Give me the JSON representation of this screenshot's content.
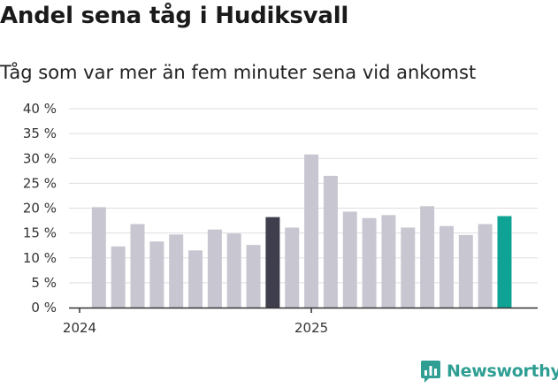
{
  "chart_data": {
    "type": "bar",
    "title": "Andel sena tåg i Hudiksvall",
    "subtitle": "Tåg som var mer än fem minuter sena vid ankomst",
    "ylim": [
      0,
      40
    ],
    "yticks": [
      "0 %",
      "5 %",
      "10 %",
      "15 %",
      "20 %",
      "25 %",
      "30 %",
      "35 %",
      "40 %"
    ],
    "xtick_labels": [
      {
        "label": "2024",
        "index": 0
      },
      {
        "label": "2025",
        "index": 12
      }
    ],
    "values": [
      null,
      20.2,
      12.3,
      16.8,
      13.3,
      14.7,
      11.5,
      15.7,
      14.9,
      12.6,
      18.2,
      16.1,
      30.8,
      26.5,
      19.3,
      18.0,
      18.6,
      16.1,
      20.4,
      16.4,
      14.6,
      16.8,
      18.4
    ],
    "highlights": {
      "10": "#3f3e4c",
      "22": "#0fa396"
    },
    "default_color": "#c8c7d1",
    "grid": true,
    "legend": "none"
  },
  "branding": {
    "logo_text": "Newsworthy",
    "logo_color": "#2f9e93"
  }
}
